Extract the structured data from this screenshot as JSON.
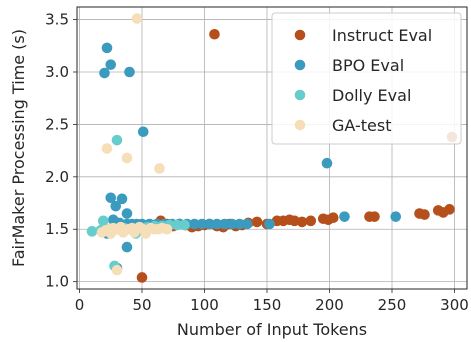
{
  "chart_data": {
    "type": "scatter",
    "title": "",
    "xlabel": "Number of Input Tokens",
    "ylabel": "FairMaker Processing Time (s)",
    "xlim": [
      -2,
      310
    ],
    "ylim": [
      0.93,
      3.62
    ],
    "xticks": [
      0,
      50,
      100,
      150,
      200,
      250,
      300
    ],
    "yticks": [
      1.0,
      1.5,
      2.0,
      2.5,
      3.0,
      3.5
    ],
    "xtick_labels": [
      "0",
      "50",
      "100",
      "150",
      "200",
      "250",
      "300"
    ],
    "ytick_labels": [
      "1.0",
      "1.5",
      "2.0",
      "2.5",
      "3.0",
      "3.5"
    ],
    "grid": true,
    "legend_position": "top-right",
    "series": [
      {
        "name": "Instruct Eval",
        "color": "#b5501c",
        "points": [
          [
            108,
            3.36
          ],
          [
            298,
            2.38
          ],
          [
            50,
            1.04
          ],
          [
            55,
            1.52
          ],
          [
            60,
            1.54
          ],
          [
            65,
            1.56
          ],
          [
            70,
            1.55
          ],
          [
            75,
            1.53
          ],
          [
            80,
            1.55
          ],
          [
            85,
            1.54
          ],
          [
            90,
            1.52
          ],
          [
            95,
            1.53
          ],
          [
            100,
            1.54
          ],
          [
            104,
            1.55
          ],
          [
            110,
            1.53
          ],
          [
            115,
            1.52
          ],
          [
            120,
            1.55
          ],
          [
            125,
            1.53
          ],
          [
            130,
            1.54
          ],
          [
            135,
            1.56
          ],
          [
            142,
            1.57
          ],
          [
            150,
            1.55
          ],
          [
            158,
            1.58
          ],
          [
            163,
            1.58
          ],
          [
            168,
            1.59
          ],
          [
            172,
            1.58
          ],
          [
            178,
            1.57
          ],
          [
            185,
            1.58
          ],
          [
            195,
            1.6
          ],
          [
            199,
            1.59
          ],
          [
            203,
            1.61
          ],
          [
            232,
            1.62
          ],
          [
            236,
            1.62
          ],
          [
            272,
            1.65
          ],
          [
            276,
            1.64
          ],
          [
            287,
            1.68
          ],
          [
            291,
            1.66
          ],
          [
            296,
            1.69
          ],
          [
            65,
            1.58
          ],
          [
            52,
            1.5
          ]
        ]
      },
      {
        "name": "BPO Eval",
        "color": "#3b9bbf",
        "points": [
          [
            22,
            3.23
          ],
          [
            25,
            3.07
          ],
          [
            20,
            2.99
          ],
          [
            40,
            3.0
          ],
          [
            51,
            2.43
          ],
          [
            198,
            2.13
          ],
          [
            25,
            1.8
          ],
          [
            34,
            1.79
          ],
          [
            38,
            1.65
          ],
          [
            29,
            1.72
          ],
          [
            27,
            1.59
          ],
          [
            32,
            1.56
          ],
          [
            38,
            1.55
          ],
          [
            42,
            1.55
          ],
          [
            46,
            1.55
          ],
          [
            50,
            1.55
          ],
          [
            56,
            1.55
          ],
          [
            62,
            1.55
          ],
          [
            68,
            1.55
          ],
          [
            74,
            1.55
          ],
          [
            80,
            1.55
          ],
          [
            86,
            1.55
          ],
          [
            92,
            1.55
          ],
          [
            98,
            1.55
          ],
          [
            104,
            1.55
          ],
          [
            110,
            1.55
          ],
          [
            116,
            1.55
          ],
          [
            122,
            1.55
          ],
          [
            128,
            1.55
          ],
          [
            134,
            1.55
          ],
          [
            152,
            1.55
          ],
          [
            212,
            1.62
          ],
          [
            253,
            1.62
          ],
          [
            30,
            1.13
          ],
          [
            38,
            1.33
          ],
          [
            22,
            1.46
          ]
        ]
      },
      {
        "name": "Dolly Eval",
        "color": "#66cccc",
        "points": [
          [
            30,
            2.35
          ],
          [
            10,
            1.48
          ],
          [
            17,
            1.49
          ],
          [
            24,
            1.5
          ],
          [
            30,
            1.5
          ],
          [
            36,
            1.51
          ],
          [
            42,
            1.51
          ],
          [
            48,
            1.52
          ],
          [
            54,
            1.52
          ],
          [
            60,
            1.53
          ],
          [
            66,
            1.53
          ],
          [
            72,
            1.54
          ],
          [
            78,
            1.54
          ],
          [
            84,
            1.54
          ],
          [
            28,
            1.15
          ],
          [
            19,
            1.58
          ],
          [
            45,
            1.46
          ]
        ]
      },
      {
        "name": "GA-test",
        "color": "#f5deb8",
        "points": [
          [
            46,
            3.51
          ],
          [
            22,
            2.27
          ],
          [
            38,
            2.18
          ],
          [
            64,
            2.08
          ],
          [
            30,
            1.11
          ],
          [
            18,
            1.47
          ],
          [
            21,
            1.49
          ],
          [
            24,
            1.5
          ],
          [
            27,
            1.51
          ],
          [
            30,
            1.5
          ],
          [
            33,
            1.52
          ],
          [
            36,
            1.49
          ],
          [
            39,
            1.5
          ],
          [
            42,
            1.51
          ],
          [
            45,
            1.5
          ],
          [
            48,
            1.52
          ],
          [
            51,
            1.5
          ],
          [
            54,
            1.49
          ],
          [
            57,
            1.51
          ],
          [
            60,
            1.5
          ],
          [
            63,
            1.5
          ],
          [
            66,
            1.51
          ],
          [
            70,
            1.5
          ],
          [
            25,
            1.46
          ],
          [
            35,
            1.47
          ],
          [
            44,
            1.47
          ],
          [
            53,
            1.46
          ]
        ]
      }
    ]
  }
}
